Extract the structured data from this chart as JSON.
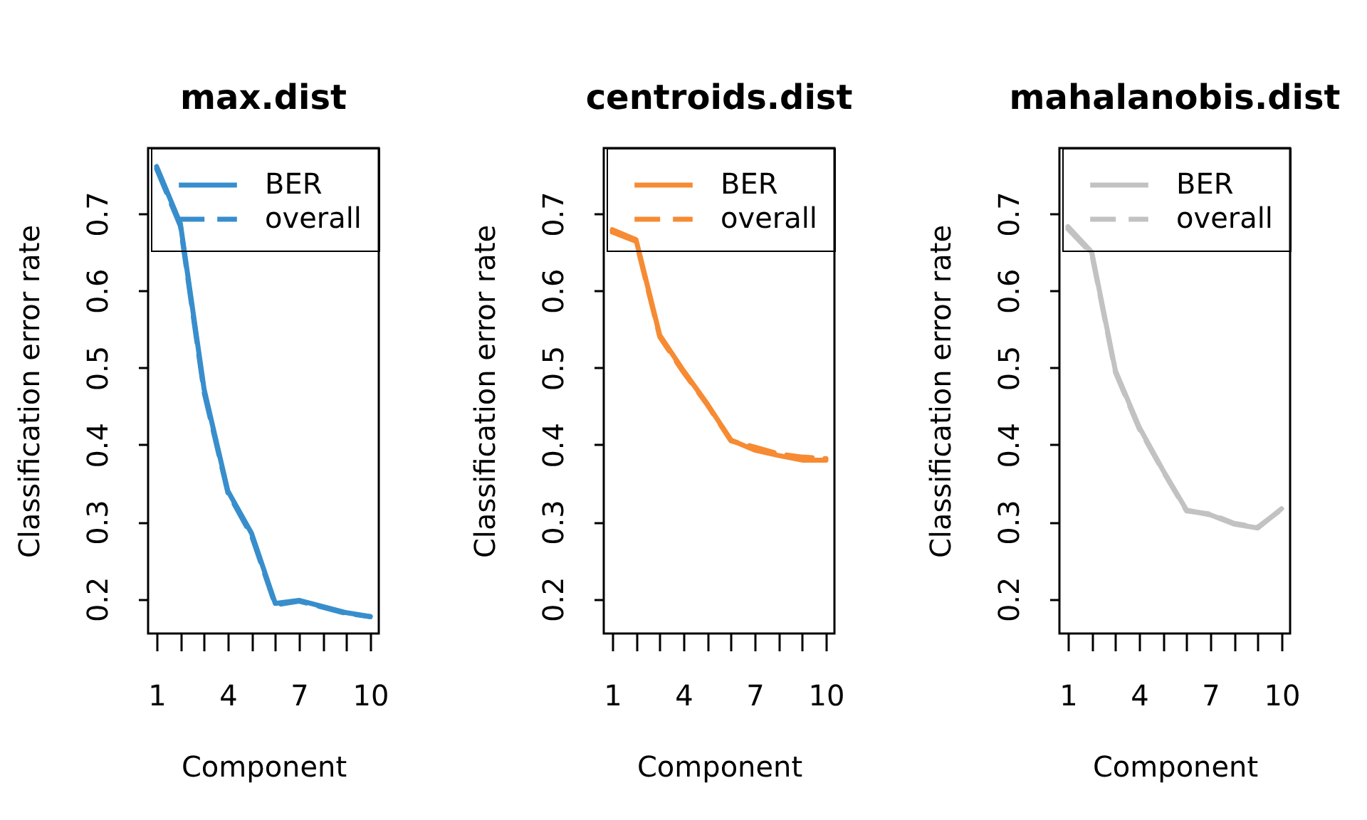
{
  "chart_data": [
    {
      "type": "line",
      "title": "max.dist",
      "xlabel": "Component",
      "ylabel": "Classification error rate",
      "x": [
        1,
        2,
        3,
        4,
        5,
        6,
        7,
        8,
        9,
        10
      ],
      "series": [
        {
          "name": "BER",
          "color": "#388ecc",
          "line_style": "solid",
          "values": [
            0.761,
            0.687,
            0.472,
            0.34,
            0.285,
            0.194,
            0.198,
            0.19,
            0.182,
            0.177
          ]
        },
        {
          "name": "overall",
          "color": "#388ecc",
          "line_style": "dashed",
          "values": [
            0.758,
            0.684,
            0.468,
            0.338,
            0.282,
            0.192,
            0.197,
            0.189,
            0.181,
            0.177
          ]
        }
      ],
      "xlim": [
        0.64,
        10.36
      ],
      "ylim": [
        0.155,
        0.785
      ],
      "xticks": [
        1,
        {
          "value": 2,
          "label": null
        },
        {
          "value": 3,
          "label": null
        },
        4,
        {
          "value": 5,
          "label": null
        },
        {
          "value": 6,
          "label": null
        },
        7,
        {
          "value": 8,
          "label": null
        },
        {
          "value": 9,
          "label": null
        },
        10
      ],
      "yticks": [
        0.2,
        0.3,
        0.4,
        0.5,
        0.6,
        0.7
      ],
      "legend": "top right"
    },
    {
      "type": "line",
      "title": "centroids.dist",
      "xlabel": "Component",
      "ylabel": "Classification error rate",
      "x": [
        1,
        2,
        3,
        4,
        5,
        6,
        7,
        8,
        9,
        10
      ],
      "series": [
        {
          "name": "BER",
          "color": "#f68b33",
          "line_style": "solid",
          "values": [
            0.679,
            0.666,
            0.542,
            0.496,
            0.453,
            0.406,
            0.393,
            0.386,
            0.38,
            0.38
          ]
        },
        {
          "name": "overall",
          "color": "#f68b33",
          "line_style": "dashed",
          "values": [
            0.676,
            0.664,
            0.54,
            0.494,
            0.452,
            0.405,
            0.397,
            0.388,
            0.384,
            0.382
          ]
        }
      ],
      "xlim": [
        0.64,
        10.36
      ],
      "ylim": [
        0.155,
        0.785
      ],
      "xticks": [
        1,
        {
          "value": 2,
          "label": null
        },
        {
          "value": 3,
          "label": null
        },
        4,
        {
          "value": 5,
          "label": null
        },
        {
          "value": 6,
          "label": null
        },
        7,
        {
          "value": 8,
          "label": null
        },
        {
          "value": 9,
          "label": null
        },
        10
      ],
      "yticks": [
        0.2,
        0.3,
        0.4,
        0.5,
        0.6,
        0.7
      ],
      "legend": "top right"
    },
    {
      "type": "line",
      "title": "mahalanobis.dist",
      "xlabel": "Component",
      "ylabel": "Classification error rate",
      "x": [
        1,
        2,
        3,
        4,
        5,
        6,
        7,
        8,
        9,
        10
      ],
      "series": [
        {
          "name": "BER",
          "color": "#c2c2c2",
          "line_style": "solid",
          "values": [
            0.683,
            0.65,
            0.496,
            0.423,
            0.367,
            0.315,
            0.309,
            0.297,
            0.292,
            0.317
          ]
        },
        {
          "name": "overall",
          "color": "#c2c2c2",
          "line_style": "dashed",
          "values": [
            0.68,
            0.648,
            0.494,
            0.421,
            0.366,
            0.314,
            0.31,
            0.298,
            0.293,
            0.316
          ]
        }
      ],
      "xlim": [
        0.64,
        10.36
      ],
      "ylim": [
        0.155,
        0.785
      ],
      "xticks": [
        1,
        {
          "value": 2,
          "label": null
        },
        {
          "value": 3,
          "label": null
        },
        4,
        {
          "value": 5,
          "label": null
        },
        {
          "value": 6,
          "label": null
        },
        7,
        {
          "value": 8,
          "label": null
        },
        {
          "value": 9,
          "label": null
        },
        10
      ],
      "yticks": [
        0.2,
        0.3,
        0.4,
        0.5,
        0.6,
        0.7
      ],
      "legend": "top right"
    }
  ]
}
